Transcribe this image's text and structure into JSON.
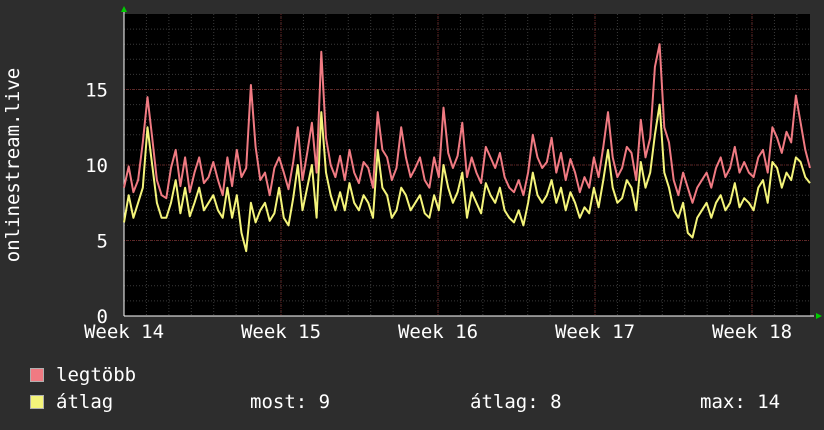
{
  "chart_data": {
    "type": "line",
    "ylabel": "onlinestream.live",
    "ylim": [
      0,
      20
    ],
    "yticks": [
      0,
      5,
      10,
      15
    ],
    "xticks": [
      "Week 14",
      "Week 15",
      "Week 16",
      "Week 17",
      "Week 18"
    ],
    "grid": true,
    "legend_position": "bottom-left",
    "colors": {
      "background": "#2d2d2d",
      "plot": "#000000",
      "grid": "#5a2020",
      "text": "#ffffff",
      "arrow": "#00cc00"
    },
    "series": [
      {
        "name": "legtöbb",
        "color": "#f07a82",
        "values": [
          8.5,
          9.9,
          8.2,
          9.0,
          11.5,
          14.5,
          11.8,
          9.0,
          8.0,
          7.8,
          9.8,
          11.0,
          8.6,
          10.5,
          8.2,
          9.5,
          10.5,
          8.8,
          9.2,
          10.2,
          9.0,
          8.0,
          10.5,
          8.6,
          11.0,
          9.2,
          9.8,
          15.3,
          11.2,
          9.0,
          9.5,
          8.0,
          9.8,
          10.5,
          9.5,
          8.4,
          10.2,
          12.5,
          9.0,
          10.8,
          12.8,
          9.5,
          17.5,
          11.8,
          10.0,
          9.2,
          10.6,
          9.0,
          11.0,
          9.5,
          8.8,
          10.2,
          9.8,
          8.5,
          13.5,
          11.0,
          10.5,
          9.0,
          9.8,
          12.5,
          10.5,
          9.2,
          9.8,
          10.5,
          9.0,
          8.5,
          10.5,
          9.2,
          13.8,
          10.8,
          9.8,
          10.6,
          12.8,
          9.2,
          10.5,
          9.5,
          8.8,
          11.2,
          10.5,
          9.8,
          10.8,
          9.2,
          8.5,
          8.2,
          9.0,
          8.0,
          9.5,
          12.0,
          10.5,
          9.8,
          10.2,
          11.8,
          9.5,
          10.8,
          9.0,
          10.4,
          9.5,
          8.2,
          9.2,
          8.5,
          10.5,
          9.2,
          11.2,
          13.5,
          10.5,
          9.2,
          9.8,
          11.2,
          10.8,
          9.0,
          13.0,
          10.5,
          11.8,
          16.5,
          18.0,
          12.5,
          11.5,
          9.0,
          8.0,
          9.5,
          8.5,
          7.5,
          8.5,
          9.0,
          9.5,
          8.5,
          9.8,
          10.5,
          9.2,
          9.8,
          11.2,
          9.5,
          10.2,
          9.5,
          9.2,
          10.5,
          11.0,
          9.5,
          12.5,
          11.8,
          10.8,
          12.2,
          11.5,
          14.6,
          12.8,
          11.0,
          9.8
        ]
      },
      {
        "name": "átlag",
        "color": "#f4f47a",
        "values": [
          6.2,
          8.0,
          6.5,
          7.5,
          8.5,
          12.5,
          10.0,
          7.5,
          6.5,
          6.5,
          7.5,
          9.0,
          6.8,
          8.5,
          6.6,
          7.5,
          8.5,
          7.0,
          7.5,
          8.0,
          7.0,
          6.5,
          8.5,
          6.5,
          8.0,
          5.5,
          4.3,
          7.5,
          6.2,
          7.0,
          7.5,
          6.3,
          6.8,
          8.5,
          6.5,
          6.0,
          7.8,
          10.0,
          7.0,
          8.5,
          10.0,
          6.5,
          13.5,
          9.5,
          8.0,
          7.0,
          8.2,
          7.0,
          8.8,
          7.5,
          7.0,
          8.0,
          7.5,
          6.5,
          11.0,
          8.5,
          8.0,
          6.5,
          7.0,
          8.5,
          8.0,
          7.0,
          7.5,
          8.0,
          6.8,
          6.5,
          8.0,
          7.0,
          10.0,
          8.5,
          7.5,
          8.2,
          9.5,
          6.5,
          8.2,
          7.5,
          6.8,
          8.8,
          8.0,
          7.5,
          8.5,
          7.0,
          6.5,
          6.2,
          7.0,
          6.0,
          7.5,
          9.5,
          8.0,
          7.5,
          8.0,
          9.0,
          7.5,
          8.5,
          7.0,
          8.2,
          7.5,
          6.5,
          7.2,
          6.8,
          8.5,
          7.2,
          9.0,
          11.0,
          8.5,
          7.5,
          7.8,
          9.0,
          8.5,
          7.0,
          10.2,
          8.5,
          9.5,
          12.0,
          14.0,
          9.5,
          8.5,
          7.0,
          6.5,
          7.5,
          5.5,
          5.2,
          6.5,
          7.0,
          7.5,
          6.5,
          7.5,
          8.0,
          7.0,
          7.5,
          8.8,
          7.2,
          7.8,
          7.5,
          7.0,
          8.5,
          9.0,
          7.5,
          10.2,
          9.8,
          8.5,
          9.5,
          9.0,
          10.5,
          10.2,
          9.2,
          8.8
        ]
      }
    ]
  },
  "legend": [
    {
      "label": "legtöbb",
      "color": "#f07a82"
    },
    {
      "label": "átlag",
      "color": "#f4f47a"
    }
  ],
  "stats": {
    "now_label": "most:",
    "now_value": "9",
    "avg_label": "átlag:",
    "avg_value": "8",
    "max_label": "max:",
    "max_value": "14"
  }
}
